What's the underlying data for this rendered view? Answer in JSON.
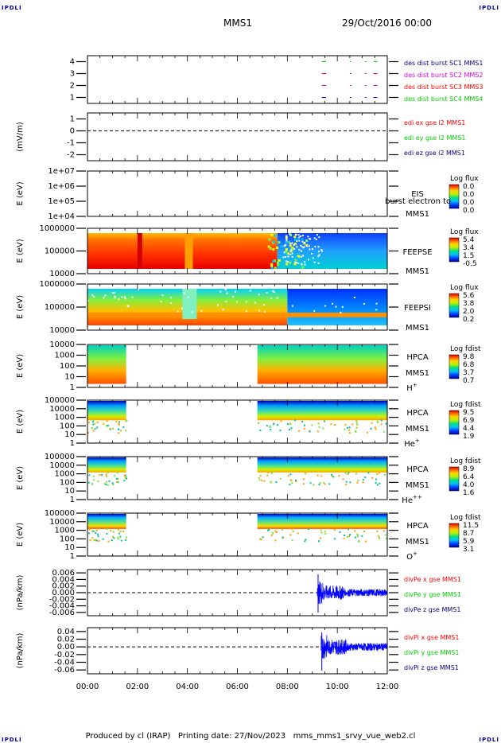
{
  "corners": {
    "text": "IPDLI"
  },
  "header": {
    "spacecraft": "MMS1",
    "date": "29/Oct/2016 00:00"
  },
  "footer": {
    "text": "Produced by cl (IRAP)   Printing date: 27/Nov/2023   mms_mms1_srvy_vue_web2.cl"
  },
  "x_axis": {
    "tick_labels": [
      "00:00",
      "02:00",
      "04:00",
      "06:00",
      "08:00",
      "10:00",
      "12:00"
    ],
    "range_hours": [
      0,
      12
    ]
  },
  "colors": {
    "red": "#ff0000",
    "green": "#00cc00",
    "blue": "#0000ff",
    "magenta": "#dd00dd",
    "axis": "#000000",
    "text_blue": "#000080"
  },
  "chart_data": [
    {
      "type": "line",
      "id": "dist",
      "ylabel": "",
      "y_ticks": [
        "4",
        "3",
        "2",
        "1"
      ],
      "ylim": [
        0.5,
        4.5
      ],
      "legend": [
        {
          "name": "des dist burst SC1 MMS1",
          "color": "#000080"
        },
        {
          "name": "des dist burst SC2 MMS2",
          "color": "#dd00dd"
        },
        {
          "name": "des dist burst SC3 MMS3",
          "color": "#ff0000"
        },
        {
          "name": "des dist burst SC4 MMS4",
          "color": "#00cc00"
        }
      ],
      "series": [
        {
          "name": "des dist burst SC1 MMS1",
          "y": 1,
          "color": "#0000ff",
          "intervals_h": [
            [
              9.38,
              9.55
            ],
            [
              10.5,
              10.56
            ],
            [
              11.1,
              11.16
            ],
            [
              11.45,
              11.6
            ]
          ]
        },
        {
          "name": "des dist burst SC2 MMS2",
          "y": 2,
          "color": "#dd00dd",
          "intervals_h": [
            [
              9.38,
              9.55
            ],
            [
              10.5,
              10.56
            ],
            [
              11.1,
              11.16
            ],
            [
              11.45,
              11.6
            ]
          ]
        },
        {
          "name": "des dist burst SC3 MMS3",
          "y": 3,
          "color": "#ff0000",
          "intervals_h": [
            [
              9.38,
              9.55
            ],
            [
              10.5,
              10.56
            ],
            [
              11.1,
              11.16
            ],
            [
              11.45,
              11.6
            ]
          ]
        },
        {
          "name": "des dist burst SC4 MMS4",
          "y": 4,
          "color": "#00cc00",
          "intervals_h": [
            [
              9.38,
              9.55
            ],
            [
              10.5,
              10.56
            ],
            [
              11.1,
              11.16
            ],
            [
              11.45,
              11.6
            ]
          ]
        }
      ]
    },
    {
      "type": "line",
      "id": "edi",
      "ylabel": "(mV/m)",
      "y_ticks": [
        "1",
        "0",
        "-1",
        "-2"
      ],
      "ylim": [
        -2.5,
        1.5
      ],
      "zero_line": true,
      "legend": [
        {
          "name": "edi ex gse l2 MMS1",
          "color": "#ff0000"
        },
        {
          "name": "edi ey gse l2 MMS1",
          "color": "#00cc00"
        },
        {
          "name": "edi ez gse l2 MMS1",
          "color": "#000080"
        }
      ]
    },
    {
      "type": "heatmap",
      "id": "eis",
      "ylabel": "E (eV)",
      "y_ticks": [
        "1e+07",
        "1e+06",
        "1e+05",
        "1e+04"
      ],
      "right_labels": [
        "EIS",
        "MMS1"
      ],
      "overlay_text": "burst electron to",
      "colorbar": {
        "title": "Log flux",
        "ticks": [
          "0.0",
          "0.0",
          "0.0",
          "0.0"
        ]
      },
      "data_intervals_h": []
    },
    {
      "type": "heatmap",
      "id": "feepse",
      "ylabel": "E (eV)",
      "y_ticks": [
        "1000000",
        "100000",
        "10000"
      ],
      "right_labels": [
        "FEEPSE",
        "MMS1"
      ],
      "colorbar": {
        "title": "Log flux",
        "ticks": [
          "5.4",
          "3.4",
          "1.5",
          "-0.5"
        ]
      },
      "data_intervals_h": [
        [
          0,
          12
        ]
      ]
    },
    {
      "type": "heatmap",
      "id": "feepsi",
      "ylabel": "E (eV)",
      "y_ticks": [
        "1000000",
        "100000",
        "10000"
      ],
      "right_labels": [
        "FEEPSI",
        "MMS1"
      ],
      "colorbar": {
        "title": "Log flux",
        "ticks": [
          "5.6",
          "3.8",
          "2.0",
          "0.2"
        ]
      },
      "data_intervals_h": [
        [
          0,
          12
        ]
      ]
    },
    {
      "type": "heatmap",
      "id": "hpca_h",
      "ylabel": "E (eV)",
      "y_ticks": [
        "10000",
        "1000",
        "100",
        "10",
        "1"
      ],
      "right_labels": [
        "HPCA",
        "MMS1"
      ],
      "species": "H",
      "species_sup": "+",
      "colorbar": {
        "title": "Log fdist",
        "ticks": [
          "9.8",
          "6.8",
          "3.7",
          "0.7"
        ]
      },
      "data_intervals_h": [
        [
          0,
          1.55
        ],
        [
          6.8,
          12
        ]
      ]
    },
    {
      "type": "heatmap",
      "id": "hpca_he",
      "ylabel": "E (eV)",
      "y_ticks": [
        "100000",
        "10000",
        "1000",
        "100",
        "10",
        "1"
      ],
      "right_labels": [
        "HPCA",
        "MMS1"
      ],
      "species": "He",
      "species_sup": "+",
      "colorbar": {
        "title": "Log fdist",
        "ticks": [
          "9.5",
          "6.9",
          "4.4",
          "1.9"
        ]
      },
      "data_intervals_h": [
        [
          0,
          1.55
        ],
        [
          6.8,
          12
        ]
      ]
    },
    {
      "type": "heatmap",
      "id": "hpca_hepp",
      "ylabel": "E (eV)",
      "y_ticks": [
        "100000",
        "10000",
        "1000",
        "100",
        "10",
        "1"
      ],
      "right_labels": [
        "HPCA",
        "MMS1"
      ],
      "species": "He",
      "species_sup": "++",
      "colorbar": {
        "title": "Log fdist",
        "ticks": [
          "8.9",
          "6.4",
          "4.0",
          "1.6"
        ]
      },
      "data_intervals_h": [
        [
          0,
          1.55
        ],
        [
          6.8,
          12
        ]
      ]
    },
    {
      "type": "heatmap",
      "id": "hpca_o",
      "ylabel": "E (eV)",
      "y_ticks": [
        "100000",
        "10000",
        "1000",
        "100",
        "10",
        "1"
      ],
      "right_labels": [
        "HPCA",
        "MMS1"
      ],
      "species": "O",
      "species_sup": "+",
      "colorbar": {
        "title": "Log fdist",
        "ticks": [
          "11.5",
          "8.7",
          "5.9",
          "3.1"
        ]
      },
      "data_intervals_h": [
        [
          0,
          1.55
        ],
        [
          6.8,
          12
        ]
      ]
    },
    {
      "type": "line",
      "id": "divpe",
      "ylabel": "(nPa/km)",
      "y_ticks": [
        "0.006",
        "0.004",
        "0.002",
        "0.000",
        "-0.002",
        "-0.004",
        "-0.006"
      ],
      "ylim": [
        -0.007,
        0.007
      ],
      "zero_line": true,
      "legend": [
        {
          "name": "divPe x gse MMS1",
          "color": "#ff0000"
        },
        {
          "name": "divPe y gse MMS1",
          "color": "#00cc00"
        },
        {
          "name": "divPe z gse MMS1",
          "color": "#000080"
        }
      ],
      "burst_interval_h": [
        9.2,
        12
      ],
      "burst_amplitude": 0.0022
    },
    {
      "type": "line",
      "id": "divpi",
      "ylabel": "(nPa/km)",
      "y_ticks": [
        "0.04",
        "0.02",
        "0.00",
        "-0.02",
        "-0.04",
        "-0.06"
      ],
      "ylim": [
        -0.07,
        0.05
      ],
      "zero_line": true,
      "legend": [
        {
          "name": "divPi x gse MMS1",
          "color": "#ff0000"
        },
        {
          "name": "divPi y gse MMS1",
          "color": "#00cc00"
        },
        {
          "name": "divPi z gse MMS1",
          "color": "#000080"
        }
      ],
      "burst_interval_h": [
        9.35,
        12
      ],
      "burst_amplitude": 0.02
    }
  ]
}
